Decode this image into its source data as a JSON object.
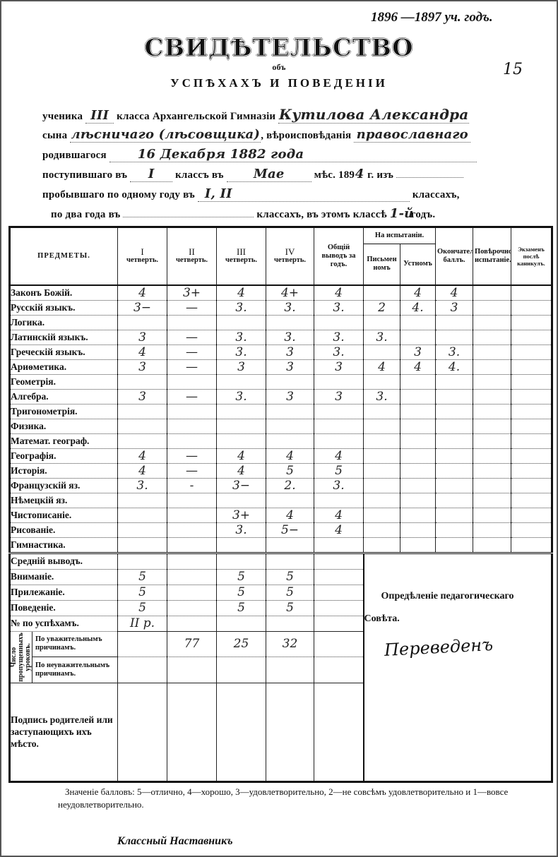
{
  "header": {
    "school_year": "1896 —1897 уч. годъ.",
    "page_number": "15",
    "title": "СВИДѢТЕЛЬСТВО",
    "subtitle_1": "объ",
    "subtitle_2": "УСПѢХАХЪ И ПОВЕДЕНІИ",
    "line1": {
      "p1": "ученика",
      "class": "III",
      "p2": "класса Архангельской Гимназіи",
      "student": "Кутилова Александра"
    },
    "line2": {
      "p1": "сына",
      "father": "лѣсничаго (лѣсовщика)",
      "p2": ", вѣроисповѣданія",
      "religion": "православнаго"
    },
    "line3": {
      "p1": "родившагося",
      "birth": "16 Декабря 1882 года"
    },
    "line4": {
      "p1": "поступившаго въ",
      "class": "I",
      "p2": "классъ въ",
      "month": "Мае",
      "p3": "мѣс. 189",
      "year": "4",
      "p4": "г. изъ"
    },
    "line5": {
      "p1": "пробывшаго по одному году въ",
      "classes": "I, II",
      "p2": "классахъ,"
    },
    "line6": {
      "p1": "по два года въ",
      "p2": "классахъ, въ этомъ классѣ",
      "year_in_class": "1-й",
      "p3": "годъ."
    }
  },
  "table": {
    "headers": {
      "subjects": "ПРЕДМЕТЫ.",
      "q1_num": "I",
      "q2_num": "II",
      "q3_num": "III",
      "q4_num": "IV",
      "quarter": "четверть.",
      "year_avg": "Общій выводъ за годъ.",
      "exam_group": "На испытаніи.",
      "written": "Письменномъ",
      "oral": "Устномъ",
      "final": "Окончательный баллъ.",
      "recheck": "Повѣрочное испытаніе.",
      "after_vac": "Экзаменъ послѣ каникулъ."
    },
    "subjects": [
      {
        "name": "Законъ Божій.",
        "grades": [
          "4",
          "3+",
          "4",
          "4+",
          "4",
          "",
          "4",
          "4",
          "",
          ""
        ]
      },
      {
        "name": "Русскій языкъ.",
        "grades": [
          "3−",
          "—",
          "3.",
          "3.",
          "3.",
          "2",
          "4.",
          "3",
          "",
          ""
        ]
      },
      {
        "name": "Логика.",
        "grades": [
          "",
          "",
          "",
          "",
          "",
          "",
          "",
          "",
          "",
          ""
        ]
      },
      {
        "name": "Латинскій языкъ.",
        "grades": [
          "3",
          "—",
          "3.",
          "3.",
          "3.",
          "3.",
          "",
          "",
          "",
          ""
        ]
      },
      {
        "name": "Греческій языкъ.",
        "grades": [
          "4",
          "—",
          "3.",
          "3",
          "3.",
          "",
          "3",
          "3.",
          "",
          ""
        ]
      },
      {
        "name": "Ариѳметика.",
        "grades": [
          "3",
          "—",
          "3",
          "3",
          "3",
          "4",
          "4",
          "4.",
          "",
          ""
        ]
      },
      {
        "name": "Геометрія.",
        "grades": [
          "",
          "",
          "",
          "",
          "",
          "",
          "",
          "",
          "",
          ""
        ]
      },
      {
        "name": "Алгебра.",
        "grades": [
          "3",
          "—",
          "3.",
          "3",
          "3",
          "3.",
          "",
          "",
          "",
          ""
        ]
      },
      {
        "name": "Тригонометрія.",
        "grades": [
          "",
          "",
          "",
          "",
          "",
          "",
          "",
          "",
          "",
          ""
        ]
      },
      {
        "name": "Физика.",
        "grades": [
          "",
          "",
          "",
          "",
          "",
          "",
          "",
          "",
          "",
          ""
        ]
      },
      {
        "name": "Математ. географ.",
        "grades": [
          "",
          "",
          "",
          "",
          "",
          "",
          "",
          "",
          "",
          ""
        ]
      },
      {
        "name": "Географія.",
        "grades": [
          "4",
          "—",
          "4",
          "4",
          "4",
          "",
          "",
          "",
          "",
          ""
        ]
      },
      {
        "name": "Исторія.",
        "grades": [
          "4",
          "—",
          "4",
          "5",
          "5",
          "",
          "",
          "",
          "",
          ""
        ]
      },
      {
        "name": "Французскій яз.",
        "grades": [
          "3.",
          "-",
          "3−",
          "2.",
          "3.",
          "",
          "",
          "",
          "",
          ""
        ]
      },
      {
        "name": "Нѣмецкій яз.",
        "grades": [
          "",
          "",
          "",
          "",
          "",
          "",
          "",
          "",
          "",
          ""
        ]
      },
      {
        "name": "Чистописаніе.",
        "grades": [
          "",
          "",
          "3+",
          "4",
          "4",
          "",
          "",
          "",
          "",
          ""
        ]
      },
      {
        "name": "Рисованіе.",
        "grades": [
          "",
          "",
          "3.",
          "5−",
          "4",
          "",
          "",
          "",
          "",
          ""
        ]
      },
      {
        "name": "Гимнастика.",
        "grades": [
          "",
          "",
          "",
          "",
          "",
          "",
          "",
          "",
          "",
          ""
        ]
      }
    ],
    "conduct": [
      {
        "name": "Средній выводъ.",
        "grades": [
          "",
          "",
          "",
          "",
          ""
        ]
      },
      {
        "name": "Вниманіе.",
        "grades": [
          "5",
          "",
          "5",
          "5",
          ""
        ]
      },
      {
        "name": "Прилежаніе.",
        "grades": [
          "5",
          "",
          "5",
          "5",
          ""
        ]
      },
      {
        "name": "Поведеніе.",
        "grades": [
          "5",
          "",
          "5",
          "5",
          ""
        ]
      },
      {
        "name": "№ по успѣхамъ.",
        "grades": [
          "II р.",
          "",
          "",
          "",
          ""
        ]
      }
    ],
    "absences": {
      "label": "Число пропущенныхъ уроковъ.",
      "excused_label": "По уважительнымъ причинамъ.",
      "excused": [
        "",
        "77",
        "25",
        "32",
        ""
      ],
      "unexcused_label": "По неуважительнымъ причинамъ.",
      "unexcused": [
        "",
        "",
        "",
        "",
        ""
      ]
    },
    "parents_signature_label": "Подпись родителей или заступающихъ ихъ мѣсто.",
    "council": {
      "label_1": "Опредѣленіе педагогическаго",
      "label_2": "Совѣта.",
      "decision": "Переведенъ"
    }
  },
  "footer": {
    "legend": "Значеніе балловъ: 5—отлично, 4—хорошо, 3—удовлетворительно, 2—не совсѣмъ удовлетворительно и 1—вовсе неудовлетворительно.",
    "class_teacher": "Классный Наставникъ"
  }
}
